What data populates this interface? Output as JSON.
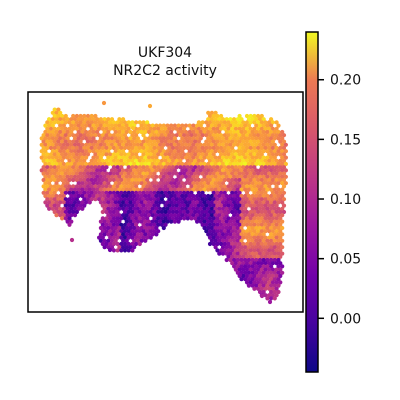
{
  "chart_data": {
    "type": "heatmap",
    "title_lines": [
      "UKF304",
      "NR2C2 activity"
    ],
    "colormap": "plasma",
    "colorbar": {
      "range": [
        -0.045,
        0.24
      ],
      "ticks": [
        0.0,
        0.05,
        0.1,
        0.15,
        0.2
      ],
      "tick_labels": [
        "0.00",
        "0.05",
        "0.10",
        "0.15",
        "0.20"
      ]
    },
    "grid": false,
    "axes_visible": false,
    "value_pattern": "upper band high (~0.17-0.22), lower-middle region low (~-0.02-0.05)"
  }
}
